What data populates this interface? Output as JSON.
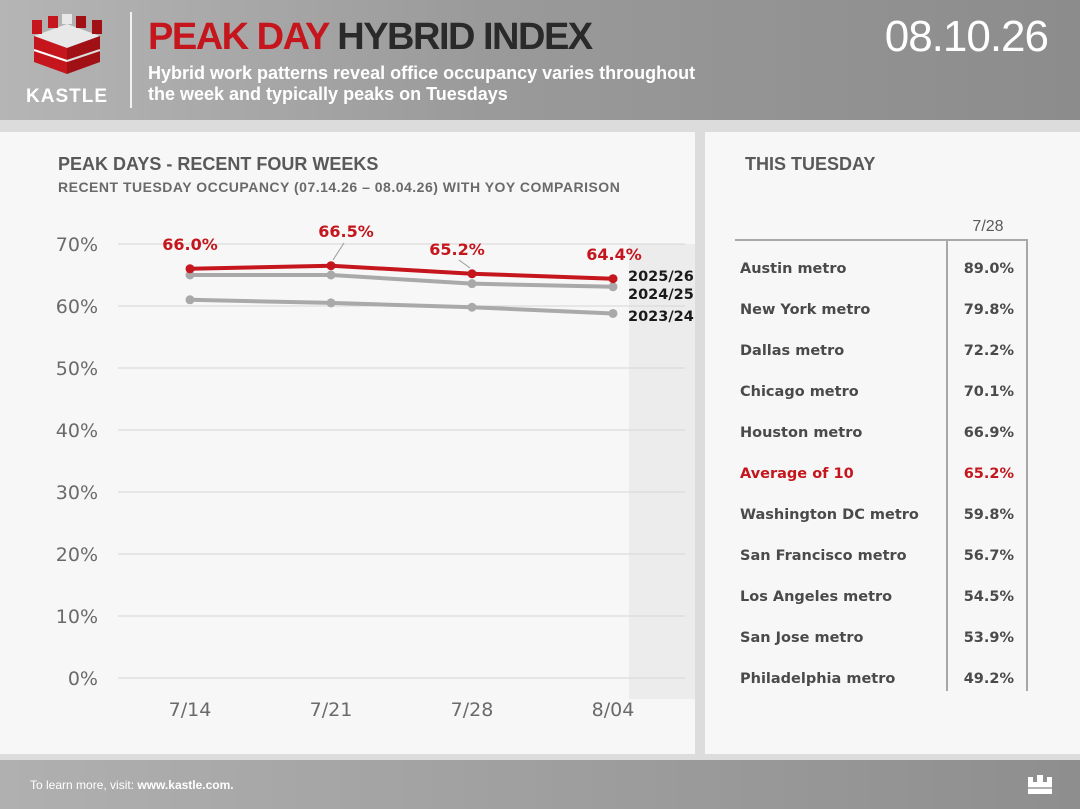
{
  "header": {
    "logo_text": "KASTLE",
    "title_red": "PEAK DAY",
    "title_dark": "HYBRID INDEX",
    "subtitle": "Hybrid work patterns reveal office occupancy varies throughout the week and typically peaks on Tuesdays",
    "date": "08.10.26"
  },
  "colors": {
    "accent": "#c4161c",
    "series_gray": "#a9a9a9",
    "series_gray_dark": "#a0a0a0"
  },
  "chart_data": {
    "type": "line",
    "title": "PEAK DAYS - RECENT FOUR WEEKS",
    "subtitle": "RECENT TUESDAY OCCUPANCY (07.14.26 – 08.04.26) WITH YOY COMPARISON",
    "categories": [
      "7/14",
      "7/21",
      "7/28",
      "8/04"
    ],
    "y_ticks": [
      "0%",
      "10%",
      "20%",
      "30%",
      "40%",
      "50%",
      "60%",
      "70%"
    ],
    "ylim": [
      0,
      70
    ],
    "grid": true,
    "series": [
      {
        "name": "2025/26",
        "values": [
          66.0,
          66.5,
          65.2,
          64.4
        ],
        "labels": [
          "66.0%",
          "66.5%",
          "65.2%",
          "64.4%"
        ],
        "color": "#c4161c"
      },
      {
        "name": "2024/25",
        "values": [
          65.0,
          65.0,
          63.6,
          63.1
        ],
        "color": "#a9a9a9"
      },
      {
        "name": "2023/24",
        "values": [
          61.0,
          60.5,
          59.8,
          58.8
        ],
        "color": "#a9a9a9"
      }
    ]
  },
  "table": {
    "heading": "THIS TUESDAY",
    "date_header": "7/28",
    "rows": [
      {
        "metro": "Austin metro",
        "value": "89.0%"
      },
      {
        "metro": "New York metro",
        "value": "79.8%"
      },
      {
        "metro": "Dallas metro",
        "value": "72.2%"
      },
      {
        "metro": "Chicago metro",
        "value": "70.1%"
      },
      {
        "metro": "Houston metro",
        "value": "66.9%"
      },
      {
        "metro": "Average of 10",
        "value": "65.2%",
        "highlight": true
      },
      {
        "metro": "Washington DC metro",
        "value": "59.8%"
      },
      {
        "metro": "San Francisco metro",
        "value": "56.7%"
      },
      {
        "metro": "Los Angeles metro",
        "value": "54.5%"
      },
      {
        "metro": "San Jose metro",
        "value": "53.9%"
      },
      {
        "metro": "Philadelphia metro",
        "value": "49.2%"
      }
    ]
  },
  "footer": {
    "text": "To learn more, visit: ",
    "link": "www.kastle.com."
  }
}
